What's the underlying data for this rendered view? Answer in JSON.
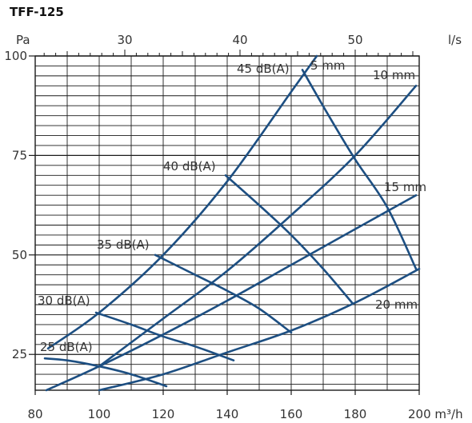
{
  "title": "TFF-125",
  "chart_data": {
    "type": "line",
    "title": "TFF-125",
    "xlabel": "m³/h",
    "x2label": "l/s",
    "ylabel": "Pa",
    "xlim": [
      80,
      200
    ],
    "ylim": [
      16,
      100
    ],
    "x_ticks": [
      80,
      100,
      120,
      140,
      160,
      180,
      200
    ],
    "x_tick_labels": [
      "80",
      "100",
      "120",
      "140",
      "160",
      "180",
      "200"
    ],
    "x2_ticks": [
      30,
      40,
      50
    ],
    "x2_tick_labels": [
      "30",
      "40",
      "50"
    ],
    "y_ticks": [
      25,
      50,
      75,
      100
    ],
    "y_tick_labels": [
      "25",
      "50",
      "75",
      "100"
    ],
    "grid": true,
    "damper_series": [
      {
        "name": "5 mm",
        "x": [
          84,
          100,
          120,
          140,
          160,
          168
        ],
        "y": [
          26.5,
          35.5,
          50,
          68.5,
          91,
          100
        ]
      },
      {
        "name": "10 mm",
        "x": [
          100,
          120,
          140,
          160,
          180,
          199
        ],
        "y": [
          22,
          34,
          46,
          60,
          75,
          92.5
        ]
      },
      {
        "name": "15 mm",
        "x": [
          83.5,
          100,
          120,
          140,
          160,
          180,
          199
        ],
        "y": [
          16,
          22,
          30,
          38.5,
          47.5,
          56.5,
          65
        ]
      },
      {
        "name": "20 mm",
        "x": [
          100,
          120,
          140,
          160,
          180,
          200
        ],
        "y": [
          16,
          20,
          25.5,
          31,
          38,
          46.5
        ]
      }
    ],
    "sound_series": [
      {
        "name": "45 dB(A)",
        "x": [
          163.5,
          171,
          180,
          190,
          199
        ],
        "y": [
          96.5,
          86,
          74,
          62,
          46.5
        ]
      },
      {
        "name": "40 dB(A)",
        "x": [
          139.5,
          150,
          160,
          170,
          179
        ],
        "y": [
          70,
          62.5,
          55,
          46.5,
          38
        ]
      },
      {
        "name": "35 dB(A)",
        "x": [
          117.5,
          130,
          140,
          150,
          160
        ],
        "y": [
          50,
          45,
          41,
          36.5,
          30.5
        ]
      },
      {
        "name": "30 dB(A)",
        "x": [
          99,
          110,
          120,
          130,
          142
        ],
        "y": [
          35.5,
          32.5,
          29.5,
          27,
          23.5
        ]
      },
      {
        "name": "25 dB(A)",
        "x": [
          83,
          90,
          100,
          110,
          121
        ],
        "y": [
          24,
          23.5,
          22,
          20,
          17
        ]
      }
    ],
    "labels": {
      "pa": "Pa",
      "ls": "l/s",
      "m3h": "200 m³/h",
      "db45": "45 dB(A)",
      "db40": "40 dB(A)",
      "db35": "35 dB(A)",
      "db30": "30 dB(A)",
      "db25": "25 dB(A)",
      "mm5": "5 mm",
      "mm10": "10 mm",
      "mm15": "15 mm",
      "mm20": "20 mm"
    },
    "line_color": "#1d4f82",
    "grid_color": "#1a1a1a"
  }
}
